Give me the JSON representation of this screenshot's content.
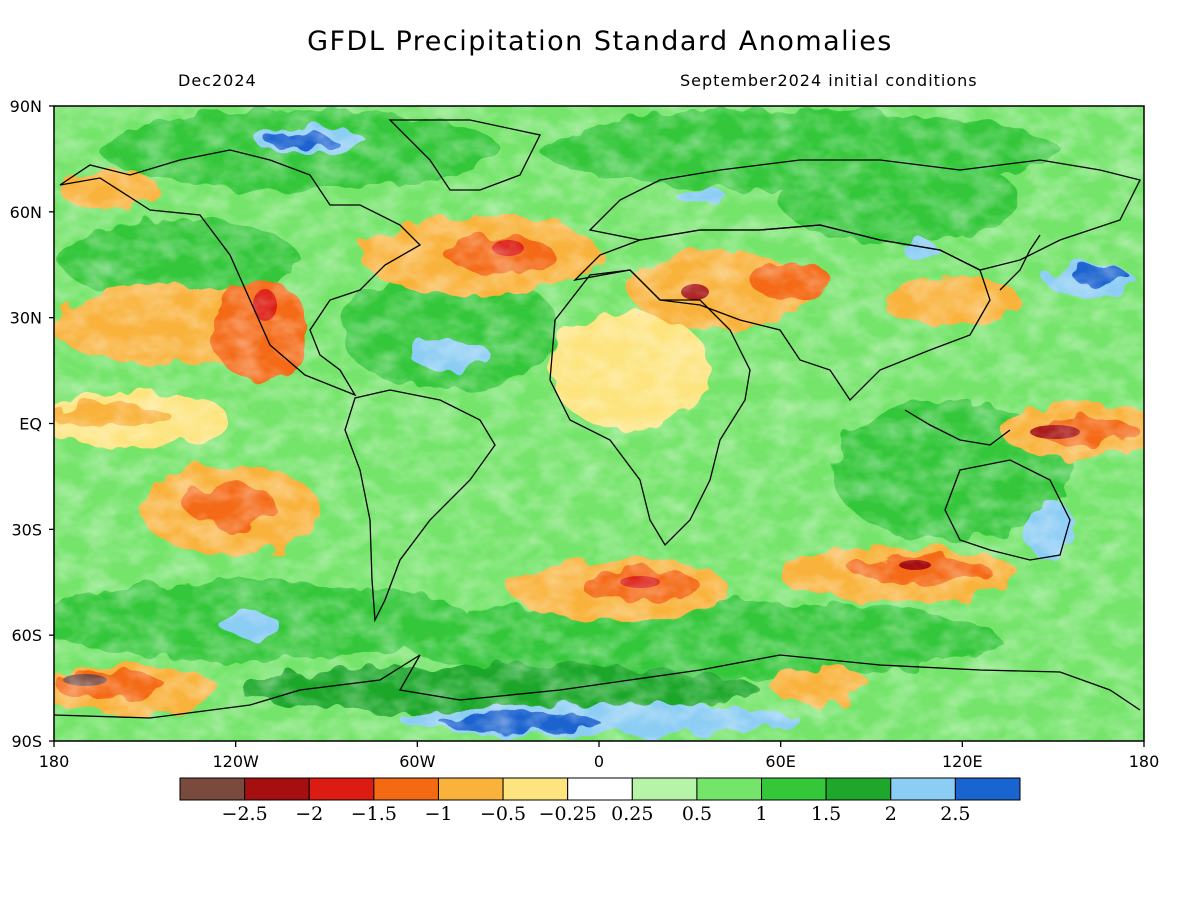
{
  "header": {
    "title": "GFDL Precipitation Standard Anomalies",
    "valid": "Dec2024",
    "init": "September2024 initial conditions"
  },
  "axes": {
    "lat_ticks": [
      "90N",
      "60N",
      "30N",
      "EQ",
      "30S",
      "60S",
      "90S"
    ],
    "lon_ticks": [
      "180",
      "120W",
      "60W",
      "0",
      "60E",
      "120E",
      "180"
    ]
  },
  "colorbar": {
    "colors": [
      "#7a4a3e",
      "#a50f0f",
      "#dc1c12",
      "#f46a12",
      "#f9b33d",
      "#fde47e",
      "#ffffff",
      "#b6f5a8",
      "#74e46a",
      "#35c73a",
      "#1ea72a",
      "#8ccdf4",
      "#1a64cf"
    ],
    "labels": [
      "−2.5",
      "−2",
      "−1.5",
      "−1",
      "−0.5",
      "−0.25",
      "0.25",
      "0.5",
      "1",
      "1.5",
      "2",
      "2.5"
    ]
  }
}
